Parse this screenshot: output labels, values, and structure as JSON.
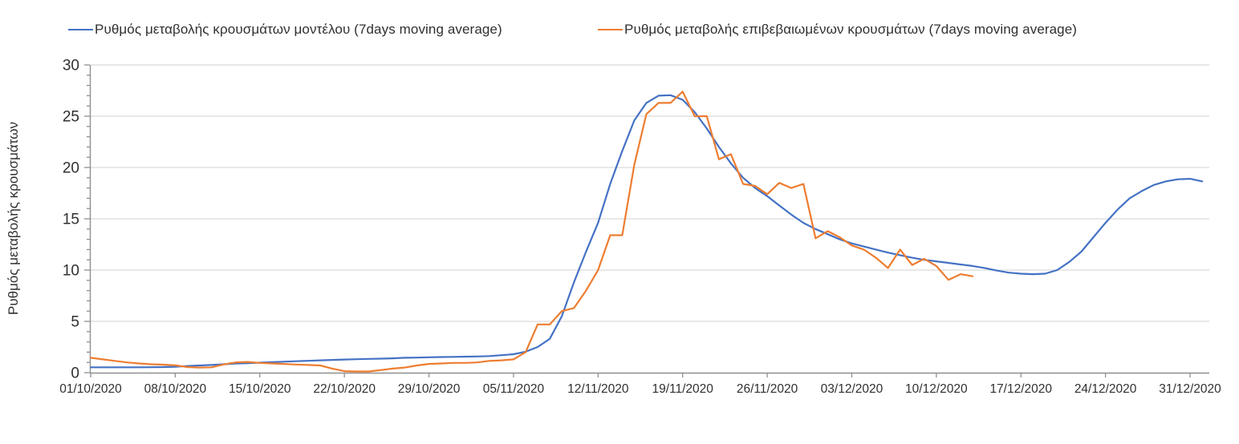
{
  "chart_data": {
    "type": "line",
    "title": "",
    "xlabel": "",
    "ylabel": "Ρυθμός μεταβολής κρουσμάτων",
    "ylim": [
      0,
      30
    ],
    "yticks": [
      0,
      5,
      10,
      15,
      20,
      25,
      30
    ],
    "y_minor_tick_step": 1,
    "grid": "horizontal",
    "legend_position": "top",
    "x_tick_labels": [
      "01/10/2020",
      "08/10/2020",
      "15/10/2020",
      "22/10/2020",
      "29/10/2020",
      "05/11/2020",
      "12/11/2020",
      "19/11/2020",
      "26/11/2020",
      "03/12/2020",
      "10/12/2020",
      "17/12/2020",
      "24/12/2020",
      "31/12/2020"
    ],
    "x_tick_interval_days": 7,
    "x_total_days": 91,
    "series": [
      {
        "name": "Ρυθμός μεταβολής κρουσμάτων μοντέλου (7days moving average)",
        "color": "#4472C4",
        "start_day": 0,
        "values": [
          0.52,
          0.52,
          0.52,
          0.52,
          0.52,
          0.53,
          0.55,
          0.58,
          0.65,
          0.7,
          0.75,
          0.82,
          0.88,
          0.93,
          0.98,
          1.02,
          1.07,
          1.12,
          1.16,
          1.2,
          1.24,
          1.28,
          1.31,
          1.34,
          1.37,
          1.4,
          1.45,
          1.47,
          1.5,
          1.52,
          1.54,
          1.56,
          1.58,
          1.62,
          1.7,
          1.8,
          2.05,
          2.5,
          3.3,
          5.5,
          8.8,
          11.8,
          14.6,
          18.4,
          21.6,
          24.6,
          26.3,
          27.0,
          27.05,
          26.6,
          25.4,
          23.8,
          22.0,
          20.4,
          19.0,
          18.0,
          17.2,
          16.3,
          15.4,
          14.6,
          14.0,
          13.5,
          13.0,
          12.6,
          12.3,
          12.0,
          11.7,
          11.45,
          11.2,
          11.0,
          10.85,
          10.7,
          10.55,
          10.4,
          10.2,
          9.95,
          9.75,
          9.65,
          9.6,
          9.65,
          10.0,
          10.8,
          11.8,
          13.2,
          14.6,
          15.9,
          17.0,
          17.7,
          18.3,
          18.65,
          18.85,
          18.9,
          18.65
        ]
      },
      {
        "name": "Ρυθμός μεταβολής επιβεβαιωμένων κρουσμάτων (7days moving average)",
        "color": "#ED7D31",
        "start_day": 0,
        "values": [
          1.45,
          1.3,
          1.15,
          1.0,
          0.9,
          0.82,
          0.78,
          0.72,
          0.55,
          0.5,
          0.52,
          0.8,
          1.0,
          1.05,
          0.95,
          0.9,
          0.85,
          0.8,
          0.75,
          0.7,
          0.4,
          0.15,
          0.12,
          0.12,
          0.25,
          0.4,
          0.5,
          0.7,
          0.85,
          0.9,
          0.95,
          0.95,
          1.0,
          1.15,
          1.2,
          1.3,
          2.0,
          4.7,
          4.7,
          6.0,
          6.3,
          8.0,
          10.0,
          13.4,
          13.4,
          20.3,
          25.2,
          26.3,
          26.3,
          27.4,
          25.0,
          25.0,
          20.8,
          21.3,
          18.4,
          18.2,
          17.4,
          18.5,
          18.0,
          18.4,
          13.1,
          13.8,
          13.2,
          12.4,
          12.0,
          11.2,
          10.2,
          12.0,
          10.5,
          11.1,
          10.4,
          9.05,
          9.6,
          9.4
        ]
      }
    ]
  },
  "colors": {
    "gridline": "#D9D9D9",
    "axis": "#8F8F8F",
    "tick": "#8F8F8F",
    "text": "#303030",
    "background": "#FFFFFF"
  }
}
